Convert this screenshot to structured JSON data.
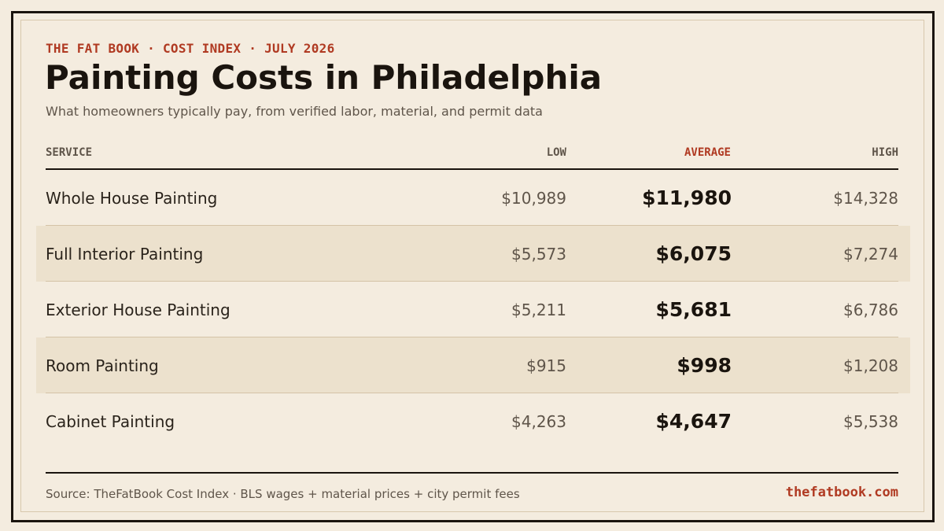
{
  "header": {
    "kicker": "THE FAT BOOK · COST INDEX · JULY 2026",
    "title": "Painting Costs in Philadelphia",
    "subtitle": "What homeowners typically pay, from verified labor, material, and permit data"
  },
  "table": {
    "columns": {
      "service": "SERVICE",
      "low": "LOW",
      "average": "AVERAGE",
      "high": "HIGH"
    },
    "rows": [
      {
        "service": "Whole House Painting",
        "low": "$10,989",
        "average": "$11,980",
        "high": "$14,328"
      },
      {
        "service": "Full Interior Painting",
        "low": "$5,573",
        "average": "$6,075",
        "high": "$7,274"
      },
      {
        "service": "Exterior House Painting",
        "low": "$5,211",
        "average": "$5,681",
        "high": "$6,786"
      },
      {
        "service": "Room Painting",
        "low": "$915",
        "average": "$998",
        "high": "$1,208"
      },
      {
        "service": "Cabinet Painting",
        "low": "$4,263",
        "average": "$4,647",
        "high": "$5,538"
      }
    ]
  },
  "footer": {
    "source": "Source: TheFatBook Cost Index · BLS wages + material prices + city permit fees",
    "site": "thefatbook.com"
  },
  "colors": {
    "background": "#f4ecdf",
    "accent": "#b03a22",
    "ink": "#1a140e",
    "shaded_row": "#ece1cd"
  }
}
